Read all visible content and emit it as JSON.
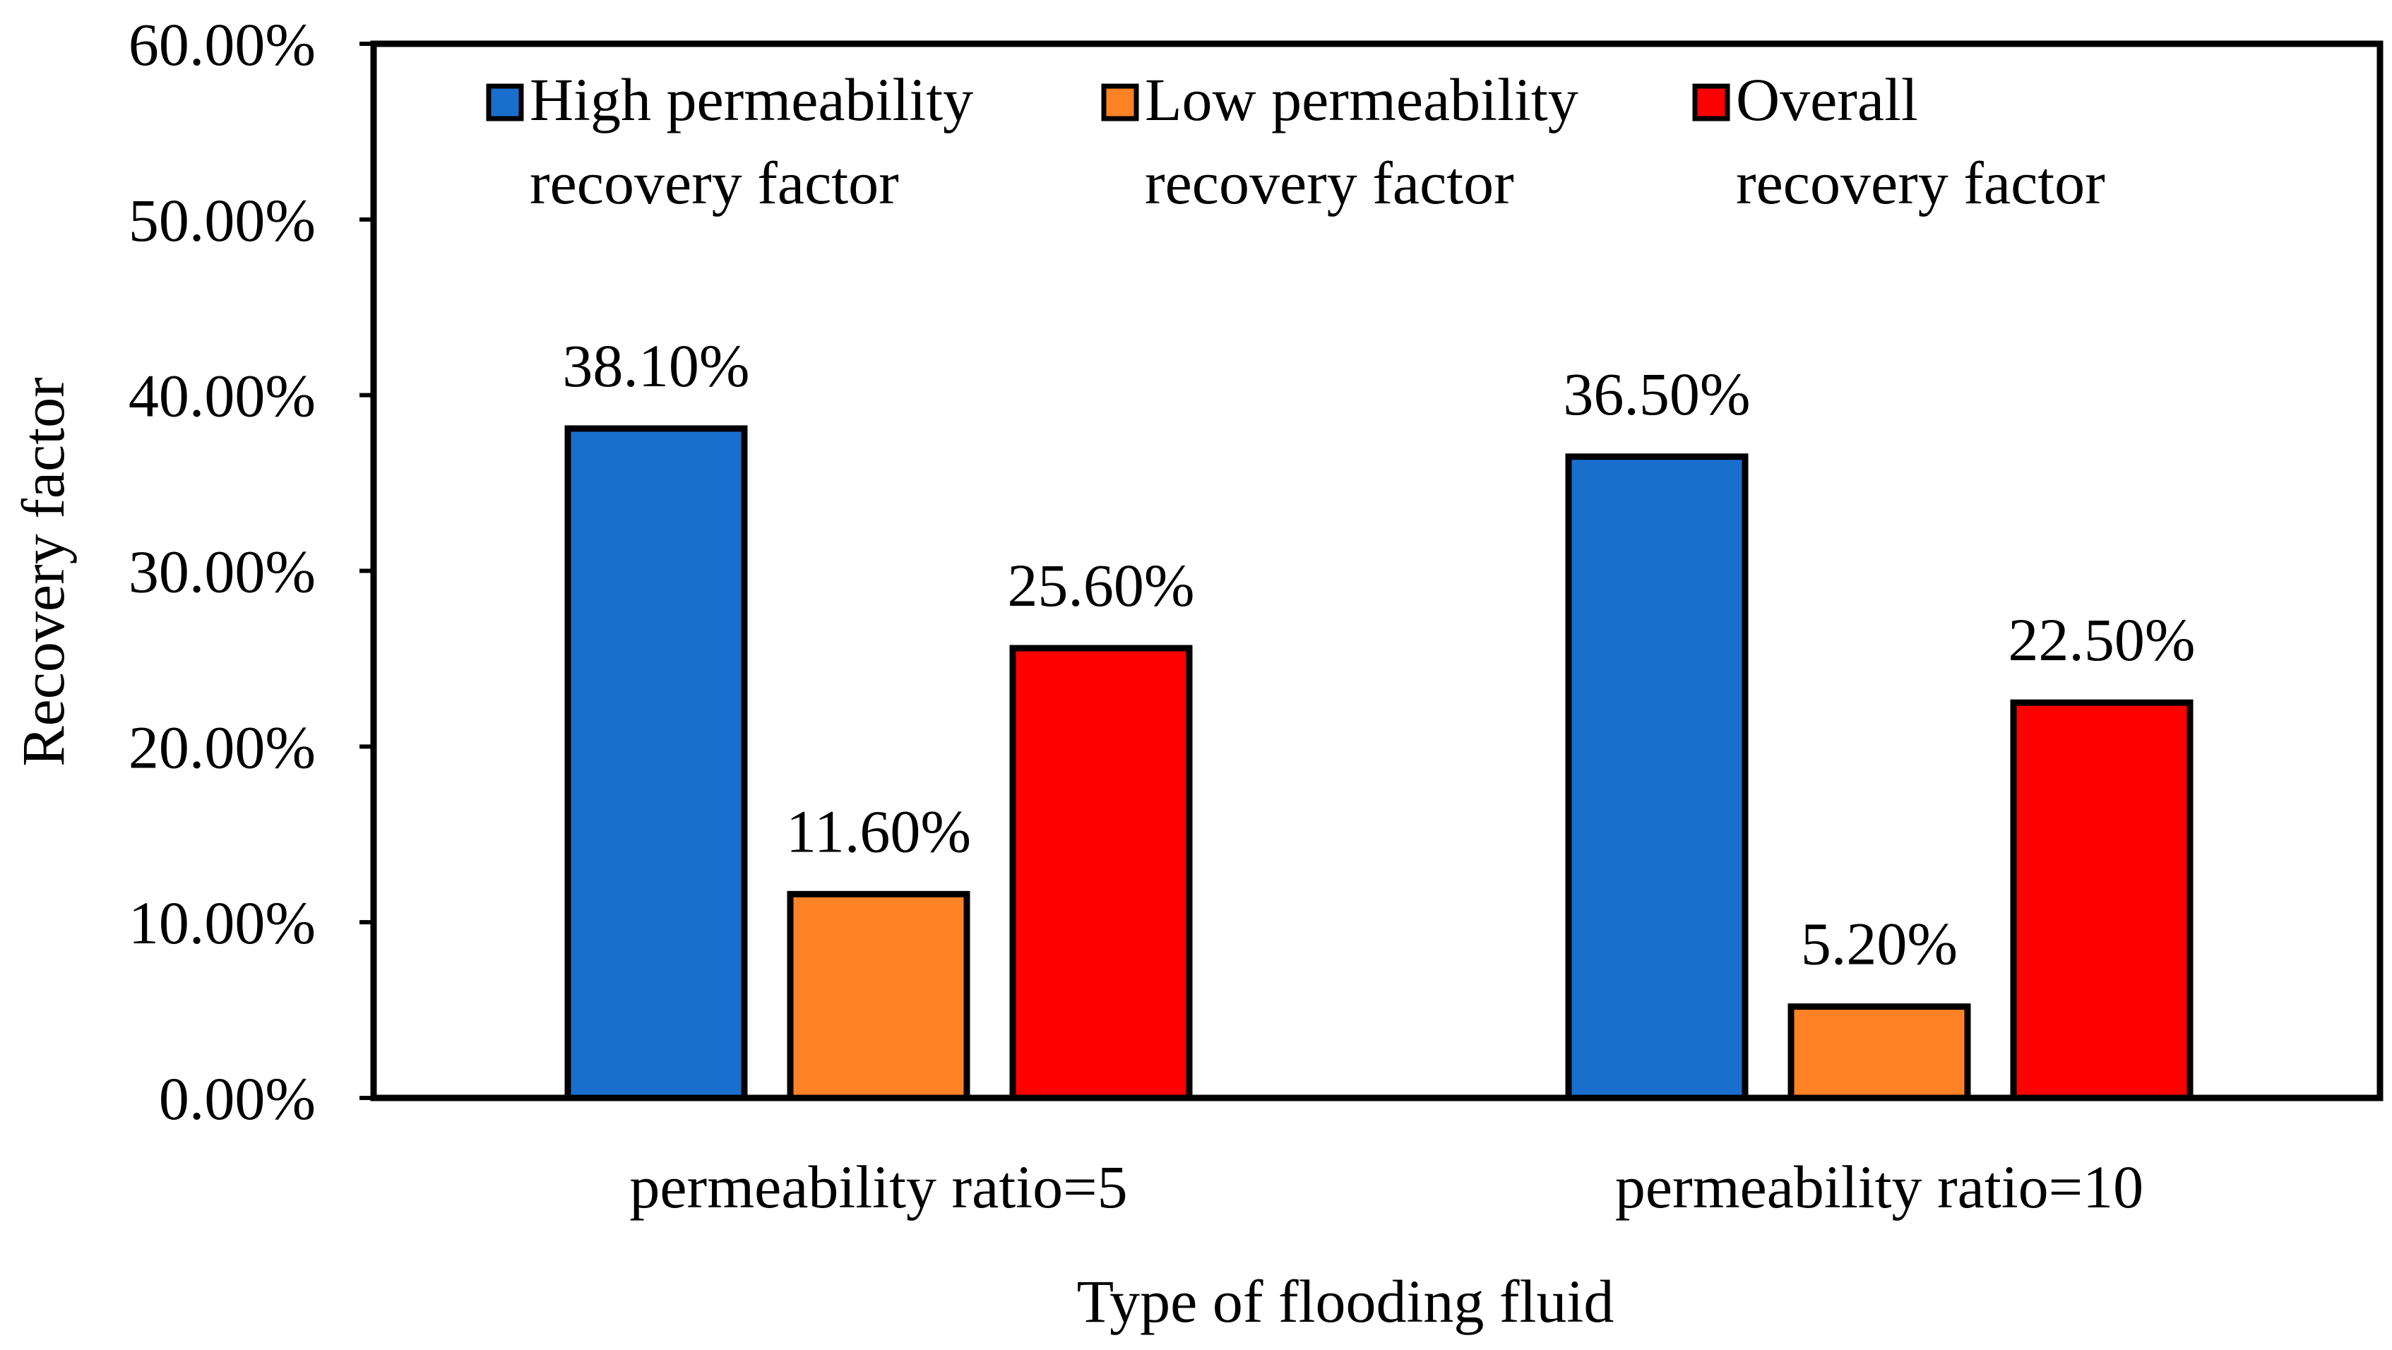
{
  "chart_data": {
    "type": "bar",
    "title": "",
    "xlabel": "Type of flooding fluid",
    "ylabel": "Recovery factor",
    "categories": [
      "permeability ratio=5",
      "permeability ratio=10"
    ],
    "series": [
      {
        "name_lines": [
          "High permeability",
          "recovery factor"
        ],
        "color": "#1a6fce",
        "values": [
          38.1,
          36.5
        ],
        "labels": [
          "38.10%",
          "36.50%"
        ]
      },
      {
        "name_lines": [
          "Low permeability",
          "recovery factor"
        ],
        "color": "#ff8225",
        "values": [
          11.6,
          5.2
        ],
        "labels": [
          "11.60%",
          "5.20%"
        ]
      },
      {
        "name_lines": [
          "Overall",
          "recovery factor"
        ],
        "color": "#ff0000",
        "values": [
          25.6,
          22.5
        ],
        "labels": [
          "25.60%",
          "22.50%"
        ]
      }
    ],
    "ylim": [
      0,
      60
    ],
    "yticks": [
      0,
      10,
      20,
      30,
      40,
      50,
      60
    ],
    "ytick_labels": [
      "0.00%",
      "10.00%",
      "20.00%",
      "30.00%",
      "40.00%",
      "50.00%",
      "60.00%"
    ],
    "grid": false,
    "legend_position": "top-inside"
  }
}
